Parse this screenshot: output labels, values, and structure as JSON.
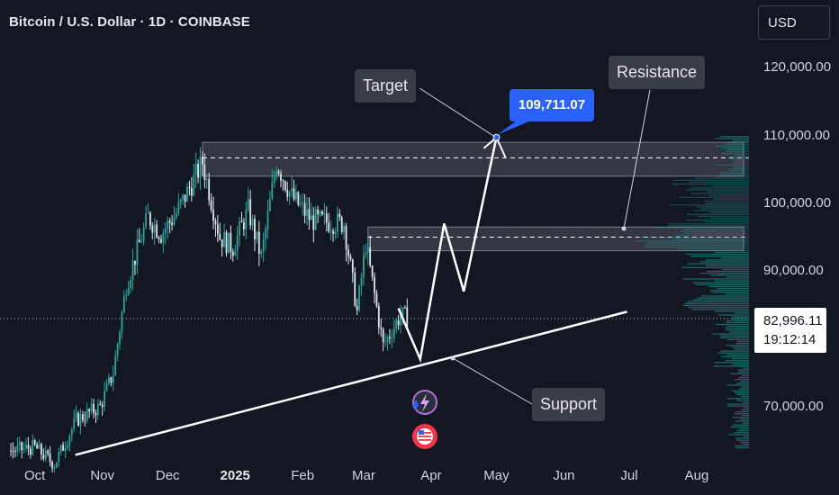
{
  "header": {
    "title": "Bitcoin / U.S. Dollar · 1D · COINBASE",
    "currency_button": "USD"
  },
  "colors": {
    "background": "#131722",
    "candle_up": "#26a69a",
    "zone_fill": "#5d606b",
    "trendline": "#ffffff",
    "target_label": "#2962ff",
    "volume_profile": "#26a69a"
  },
  "icons": [
    "lightning-event-icon",
    "us-flag-event-icon"
  ],
  "chart_data": {
    "type": "candlestick",
    "title": "Bitcoin / U.S. Dollar · 1D · COINBASE",
    "xlim": [
      "2024-09-15",
      "2025-08-25"
    ],
    "ylim": [
      62000,
      130000
    ],
    "x_ticks": [
      {
        "label": "Oct",
        "date": "2024-10-01"
      },
      {
        "label": "Nov",
        "date": "2024-11-01"
      },
      {
        "label": "Dec",
        "date": "2024-12-01"
      },
      {
        "label": "2025",
        "date": "2025-01-01"
      },
      {
        "label": "Feb",
        "date": "2025-02-01"
      },
      {
        "label": "Mar",
        "date": "2025-03-01"
      },
      {
        "label": "Apr",
        "date": "2025-04-01"
      },
      {
        "label": "May",
        "date": "2025-05-01"
      },
      {
        "label": "Jun",
        "date": "2025-06-01"
      },
      {
        "label": "Jul",
        "date": "2025-07-01"
      },
      {
        "label": "Aug",
        "date": "2025-08-01"
      }
    ],
    "y_ticks": [
      {
        "label": "120,000.00",
        "value": 120000
      },
      {
        "label": "110,000.00",
        "value": 110000
      },
      {
        "label": "100,000.00",
        "value": 100000
      },
      {
        "label": "90,000.00",
        "value": 90000
      },
      {
        "label": "70,000.00",
        "value": 70000
      }
    ],
    "price_path": [
      {
        "date": "2024-09-20",
        "close": 63500
      },
      {
        "date": "2024-10-01",
        "close": 64000
      },
      {
        "date": "2024-10-10",
        "close": 61500
      },
      {
        "date": "2024-10-20",
        "close": 68000
      },
      {
        "date": "2024-10-31",
        "close": 70000
      },
      {
        "date": "2024-11-06",
        "close": 75000
      },
      {
        "date": "2024-11-12",
        "close": 88000
      },
      {
        "date": "2024-11-22",
        "close": 98000
      },
      {
        "date": "2024-11-28",
        "close": 95500
      },
      {
        "date": "2024-12-05",
        "close": 98500
      },
      {
        "date": "2024-12-17",
        "close": 106000
      },
      {
        "date": "2024-12-25",
        "close": 95000
      },
      {
        "date": "2024-12-31",
        "close": 93500
      },
      {
        "date": "2025-01-07",
        "close": 99000
      },
      {
        "date": "2025-01-13",
        "close": 92000
      },
      {
        "date": "2025-01-20",
        "close": 106000
      },
      {
        "date": "2025-01-27",
        "close": 101000
      },
      {
        "date": "2025-02-05",
        "close": 97500
      },
      {
        "date": "2025-02-20",
        "close": 97000
      },
      {
        "date": "2025-02-26",
        "close": 84000
      },
      {
        "date": "2025-03-02",
        "close": 94000
      },
      {
        "date": "2025-03-10",
        "close": 79000
      },
      {
        "date": "2025-03-18",
        "close": 83500
      },
      {
        "date": "2025-03-22",
        "close": 83000
      }
    ],
    "last_price": {
      "label": "82,996.11",
      "value": 82996.11,
      "countdown": "19:12:14"
    },
    "zones": [
      {
        "name": "Resistance-upper",
        "from": 104000,
        "to": 109000,
        "midline": 106700
      },
      {
        "name": "Resistance-lower",
        "from": 93000,
        "to": 96500,
        "midline": 95000
      }
    ],
    "trendline": {
      "start": {
        "date": "2024-11-01",
        "price": 63000
      },
      "end": {
        "date": "2025-06-30",
        "price": 84000
      }
    },
    "projection": [
      {
        "date": "2025-03-17",
        "price": 84500
      },
      {
        "date": "2025-03-27",
        "price": 77000
      },
      {
        "date": "2025-04-07",
        "price": 97000
      },
      {
        "date": "2025-04-16",
        "price": 87000
      },
      {
        "date": "2025-05-01",
        "price": 109711.07
      }
    ],
    "annotations": {
      "target_value": "109,711.07",
      "target_label": "Target",
      "resistance_label": "Resistance",
      "support_label": "Support"
    }
  }
}
